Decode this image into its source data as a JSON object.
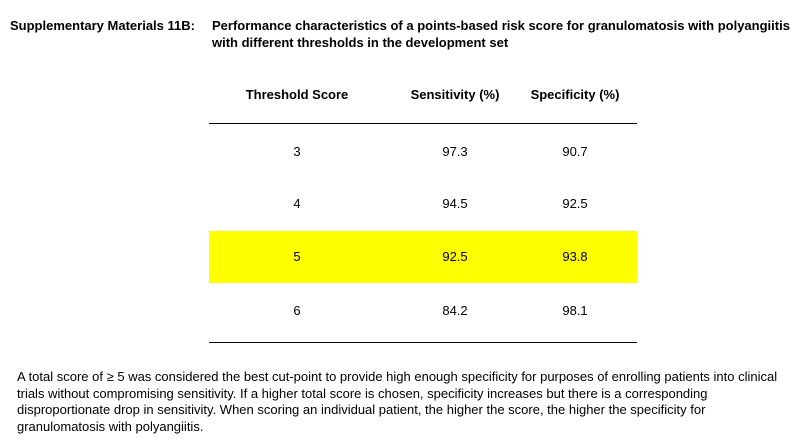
{
  "title": {
    "label": "Supplementary Materials 11B:",
    "text": "Performance characteristics of a points-based risk score for granulomatosis with polyangiitis with different thresholds in the development set"
  },
  "table": {
    "headers": [
      "Threshold Score",
      "Sensitivity (%)",
      "Specificity (%)"
    ],
    "rows": [
      {
        "threshold": "3",
        "sensitivity": "97.3",
        "specificity": "90.7",
        "highlighted": false
      },
      {
        "threshold": "4",
        "sensitivity": "94.5",
        "specificity": "92.5",
        "highlighted": false
      },
      {
        "threshold": "5",
        "sensitivity": "92.5",
        "specificity": "93.8",
        "highlighted": true
      },
      {
        "threshold": "6",
        "sensitivity": "84.2",
        "specificity": "98.1",
        "highlighted": false
      }
    ],
    "highlight_color": "#ffff00"
  },
  "footnote": "A total score of ≥ 5 was considered the best cut-point to provide high enough specificity for purposes of enrolling patients into clinical trials without compromising sensitivity.  If a higher total score is chosen, specificity increases but there is a corresponding disproportionate drop in sensitivity.  When scoring an individual patient, the higher the score, the higher the specificity for granulomatosis with polyangiitis."
}
